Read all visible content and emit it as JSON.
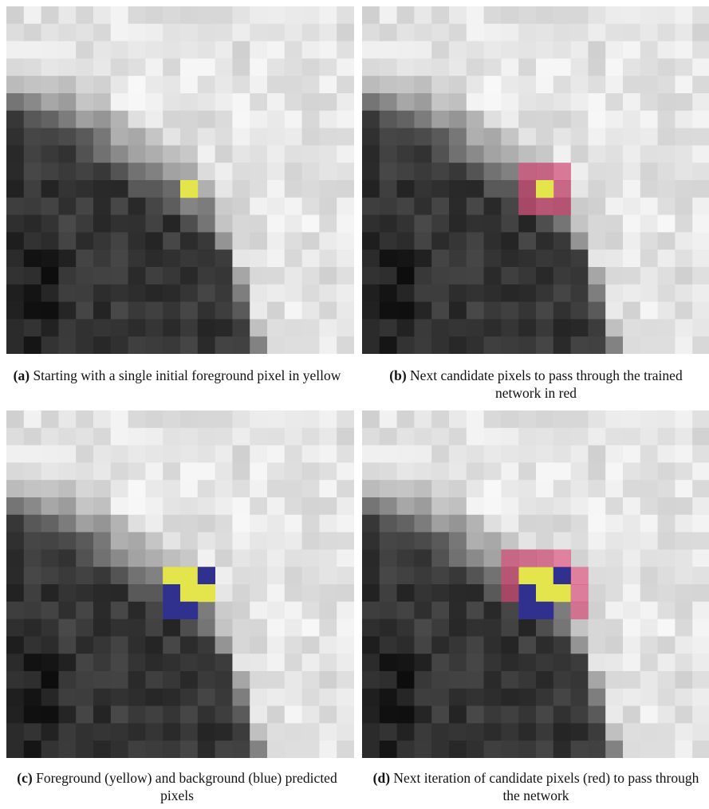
{
  "panels": [
    {
      "label": "(a)",
      "caption": "Starting with a single initial foreground pixel in yellow"
    },
    {
      "label": "(b)",
      "caption": "Next candidate pixels to pass through the trained network in red"
    },
    {
      "label": "(c)",
      "caption": "Foreground (yellow) and background (blue) predicted pixels"
    },
    {
      "label": "(d)",
      "caption": "Next iteration of candidate pixels (red) to pass through the network"
    }
  ]
}
